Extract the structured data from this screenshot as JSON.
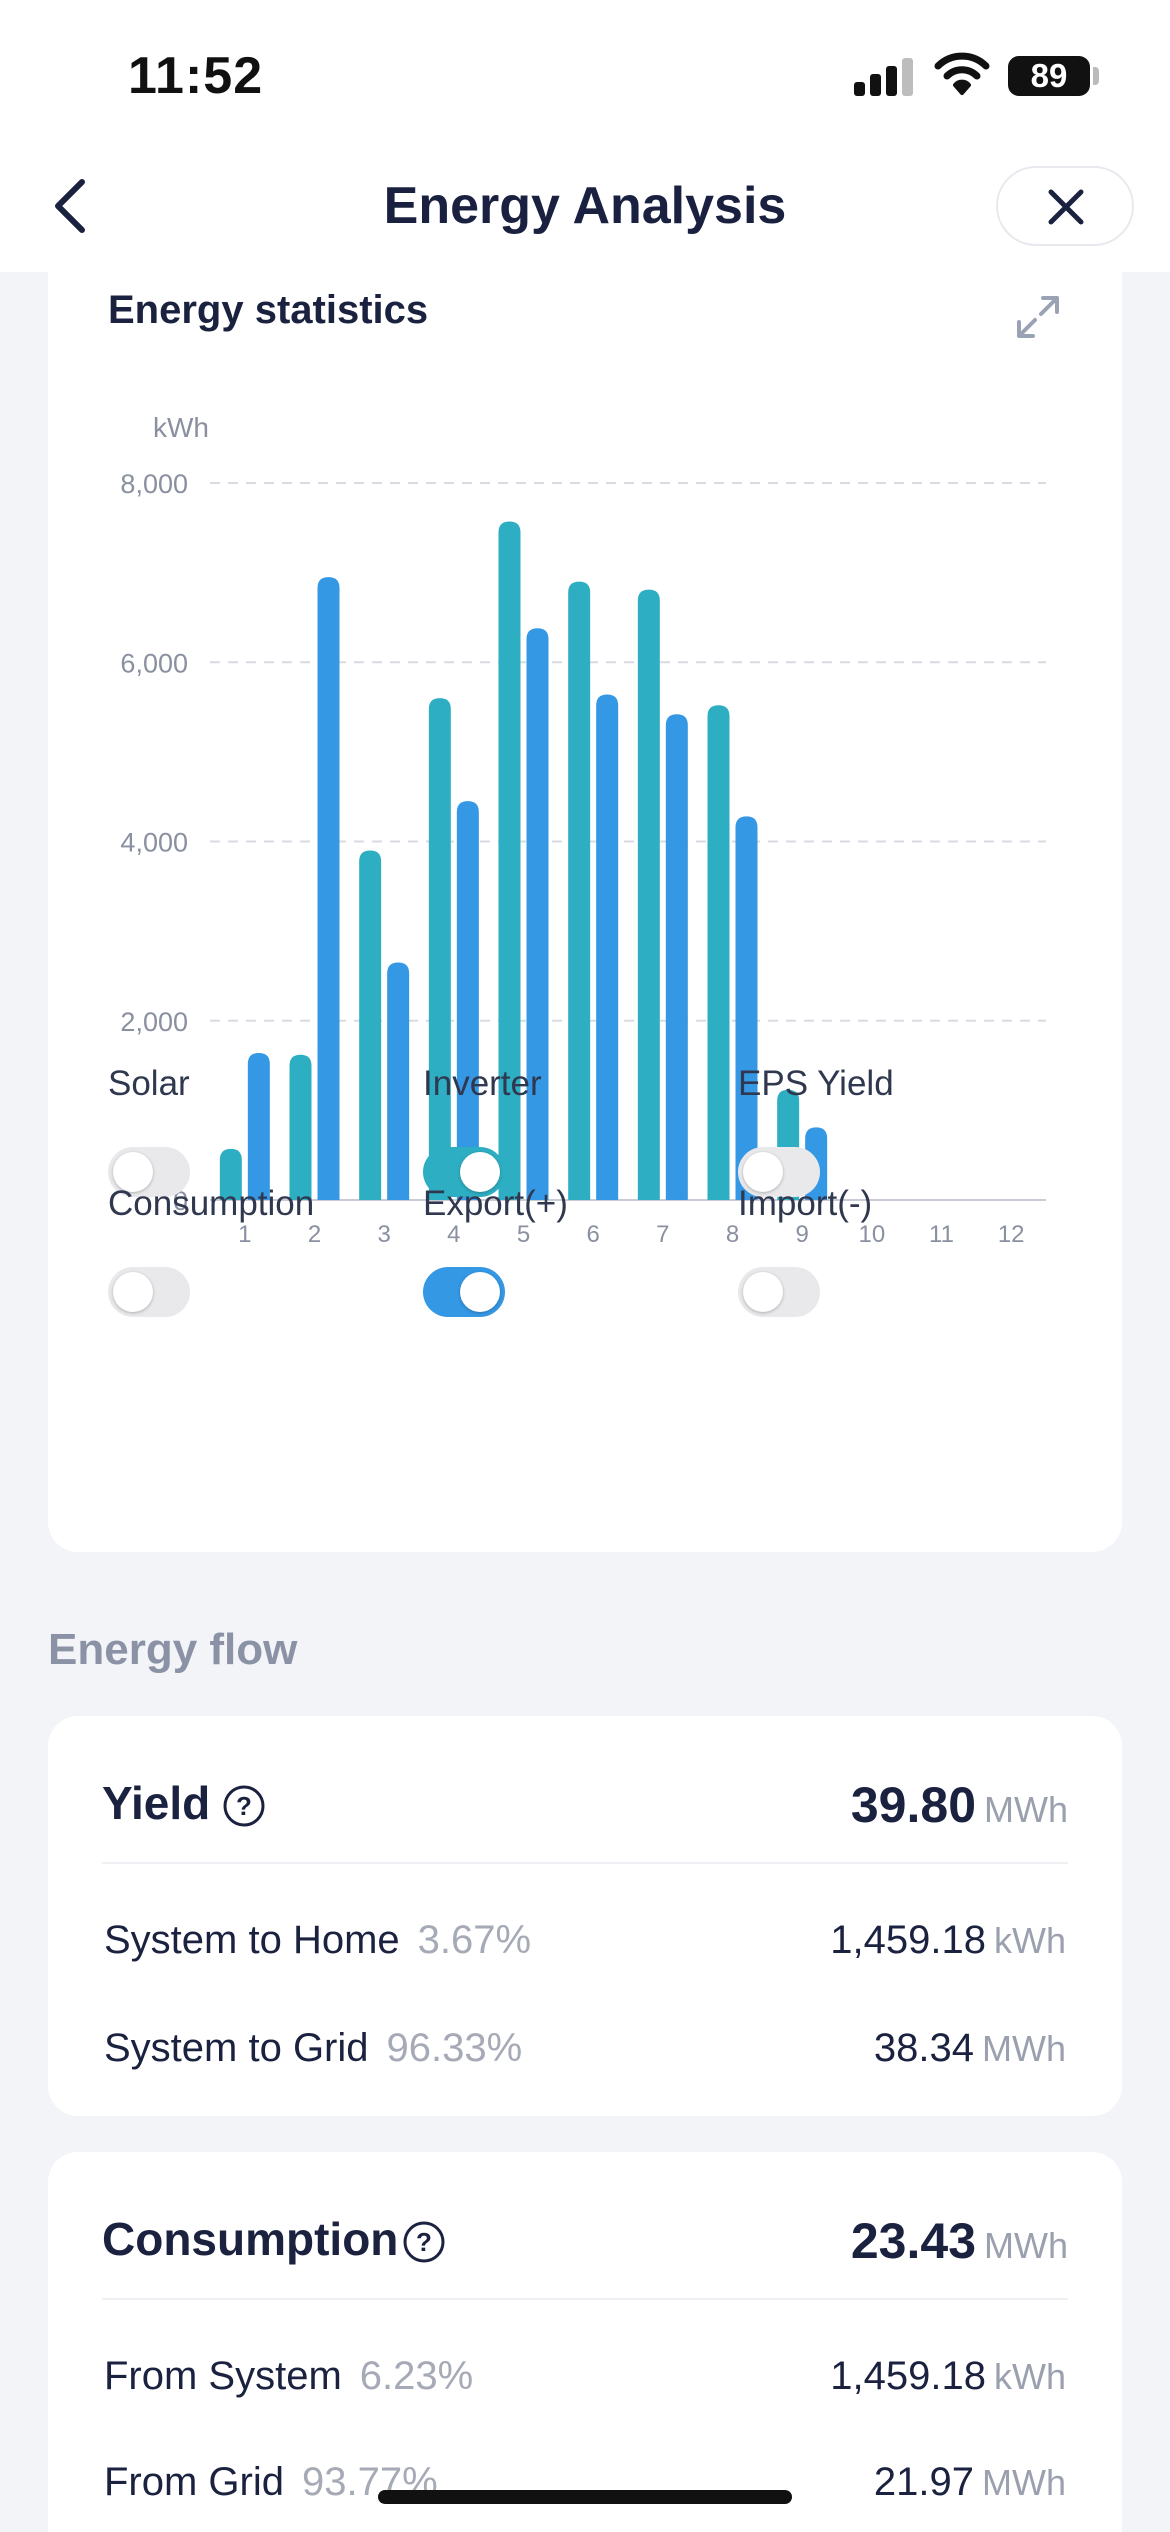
{
  "status_bar": {
    "time": "11:52",
    "battery": "89"
  },
  "nav": {
    "title": "Energy Analysis"
  },
  "stats": {
    "title": "Energy statistics",
    "toggles": [
      {
        "label": "Solar",
        "on": false
      },
      {
        "label": "Inverter",
        "on": true,
        "color": "#2eaec2"
      },
      {
        "label": "EPS Yield",
        "on": false
      },
      {
        "label": "Consumption",
        "on": false
      },
      {
        "label": "Export(+)",
        "on": true,
        "color": "#3598e4"
      },
      {
        "label": "Import(-)",
        "on": false
      }
    ]
  },
  "chart_data": {
    "type": "bar",
    "ylabel": "kWh",
    "ylim": [
      0,
      8000
    ],
    "yticks": [
      "0",
      "2,000",
      "4,000",
      "6,000",
      "8,000"
    ],
    "categories": [
      "1",
      "2",
      "3",
      "4",
      "5",
      "6",
      "7",
      "8",
      "9",
      "10",
      "11",
      "12"
    ],
    "grid": true,
    "series": [
      {
        "name": "Inverter",
        "color": "#2eaec2",
        "values": [
          570,
          1620,
          3900,
          5600,
          7570,
          6900,
          6810,
          5520,
          1230,
          0,
          0,
          0
        ]
      },
      {
        "name": "Export(+)",
        "color": "#3598e4",
        "values": [
          1640,
          6950,
          2650,
          4450,
          6380,
          5640,
          5420,
          4280,
          810,
          0,
          0,
          0
        ]
      }
    ]
  },
  "flow": {
    "section_label": "Energy flow",
    "yield": {
      "title": "Yield",
      "total": "39.80",
      "total_unit": "MWh",
      "rows": [
        {
          "label": "System to Home",
          "pct": "3.67%",
          "value": "1,459.18",
          "unit": "kWh"
        },
        {
          "label": "System to Grid",
          "pct": "96.33%",
          "value": "38.34",
          "unit": "MWh"
        }
      ]
    },
    "consumption": {
      "title": "Consumption",
      "total": "23.43",
      "total_unit": "MWh",
      "rows": [
        {
          "label": "From System",
          "pct": "6.23%",
          "value": "1,459.18",
          "unit": "kWh"
        },
        {
          "label": "From Grid",
          "pct": "93.77%",
          "value": "21.97",
          "unit": "MWh"
        }
      ]
    }
  }
}
